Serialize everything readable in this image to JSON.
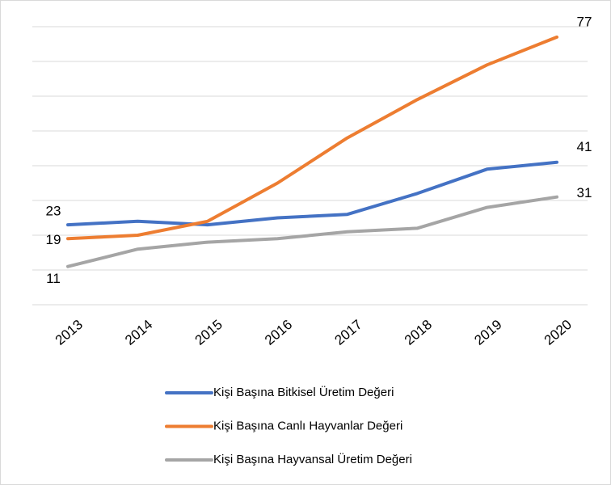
{
  "chart_data": {
    "type": "line",
    "categories": [
      "2013",
      "2014",
      "2015",
      "2016",
      "2017",
      "2018",
      "2019",
      "2020"
    ],
    "series": [
      {
        "name": "Kişi Başına Bitkisel Üretim Değeri",
        "color": "#4472c4",
        "values": [
          23,
          24,
          23,
          25,
          26,
          32,
          39,
          41
        ]
      },
      {
        "name": "Kişi Başına Canlı Hayvanlar Değeri",
        "color": "#ed7d31",
        "values": [
          19,
          20,
          24,
          35,
          48,
          59,
          69,
          77
        ]
      },
      {
        "name": "Kişi Başına Hayvansal Üretim Değeri",
        "color": "#a5a5a5",
        "values": [
          11,
          16,
          18,
          19,
          21,
          22,
          28,
          31
        ]
      }
    ],
    "ylim": [
      0,
      80
    ],
    "yticks": [
      0,
      10,
      20,
      30,
      40,
      50,
      60,
      70,
      80
    ],
    "grid": true,
    "legend": "bottom"
  }
}
